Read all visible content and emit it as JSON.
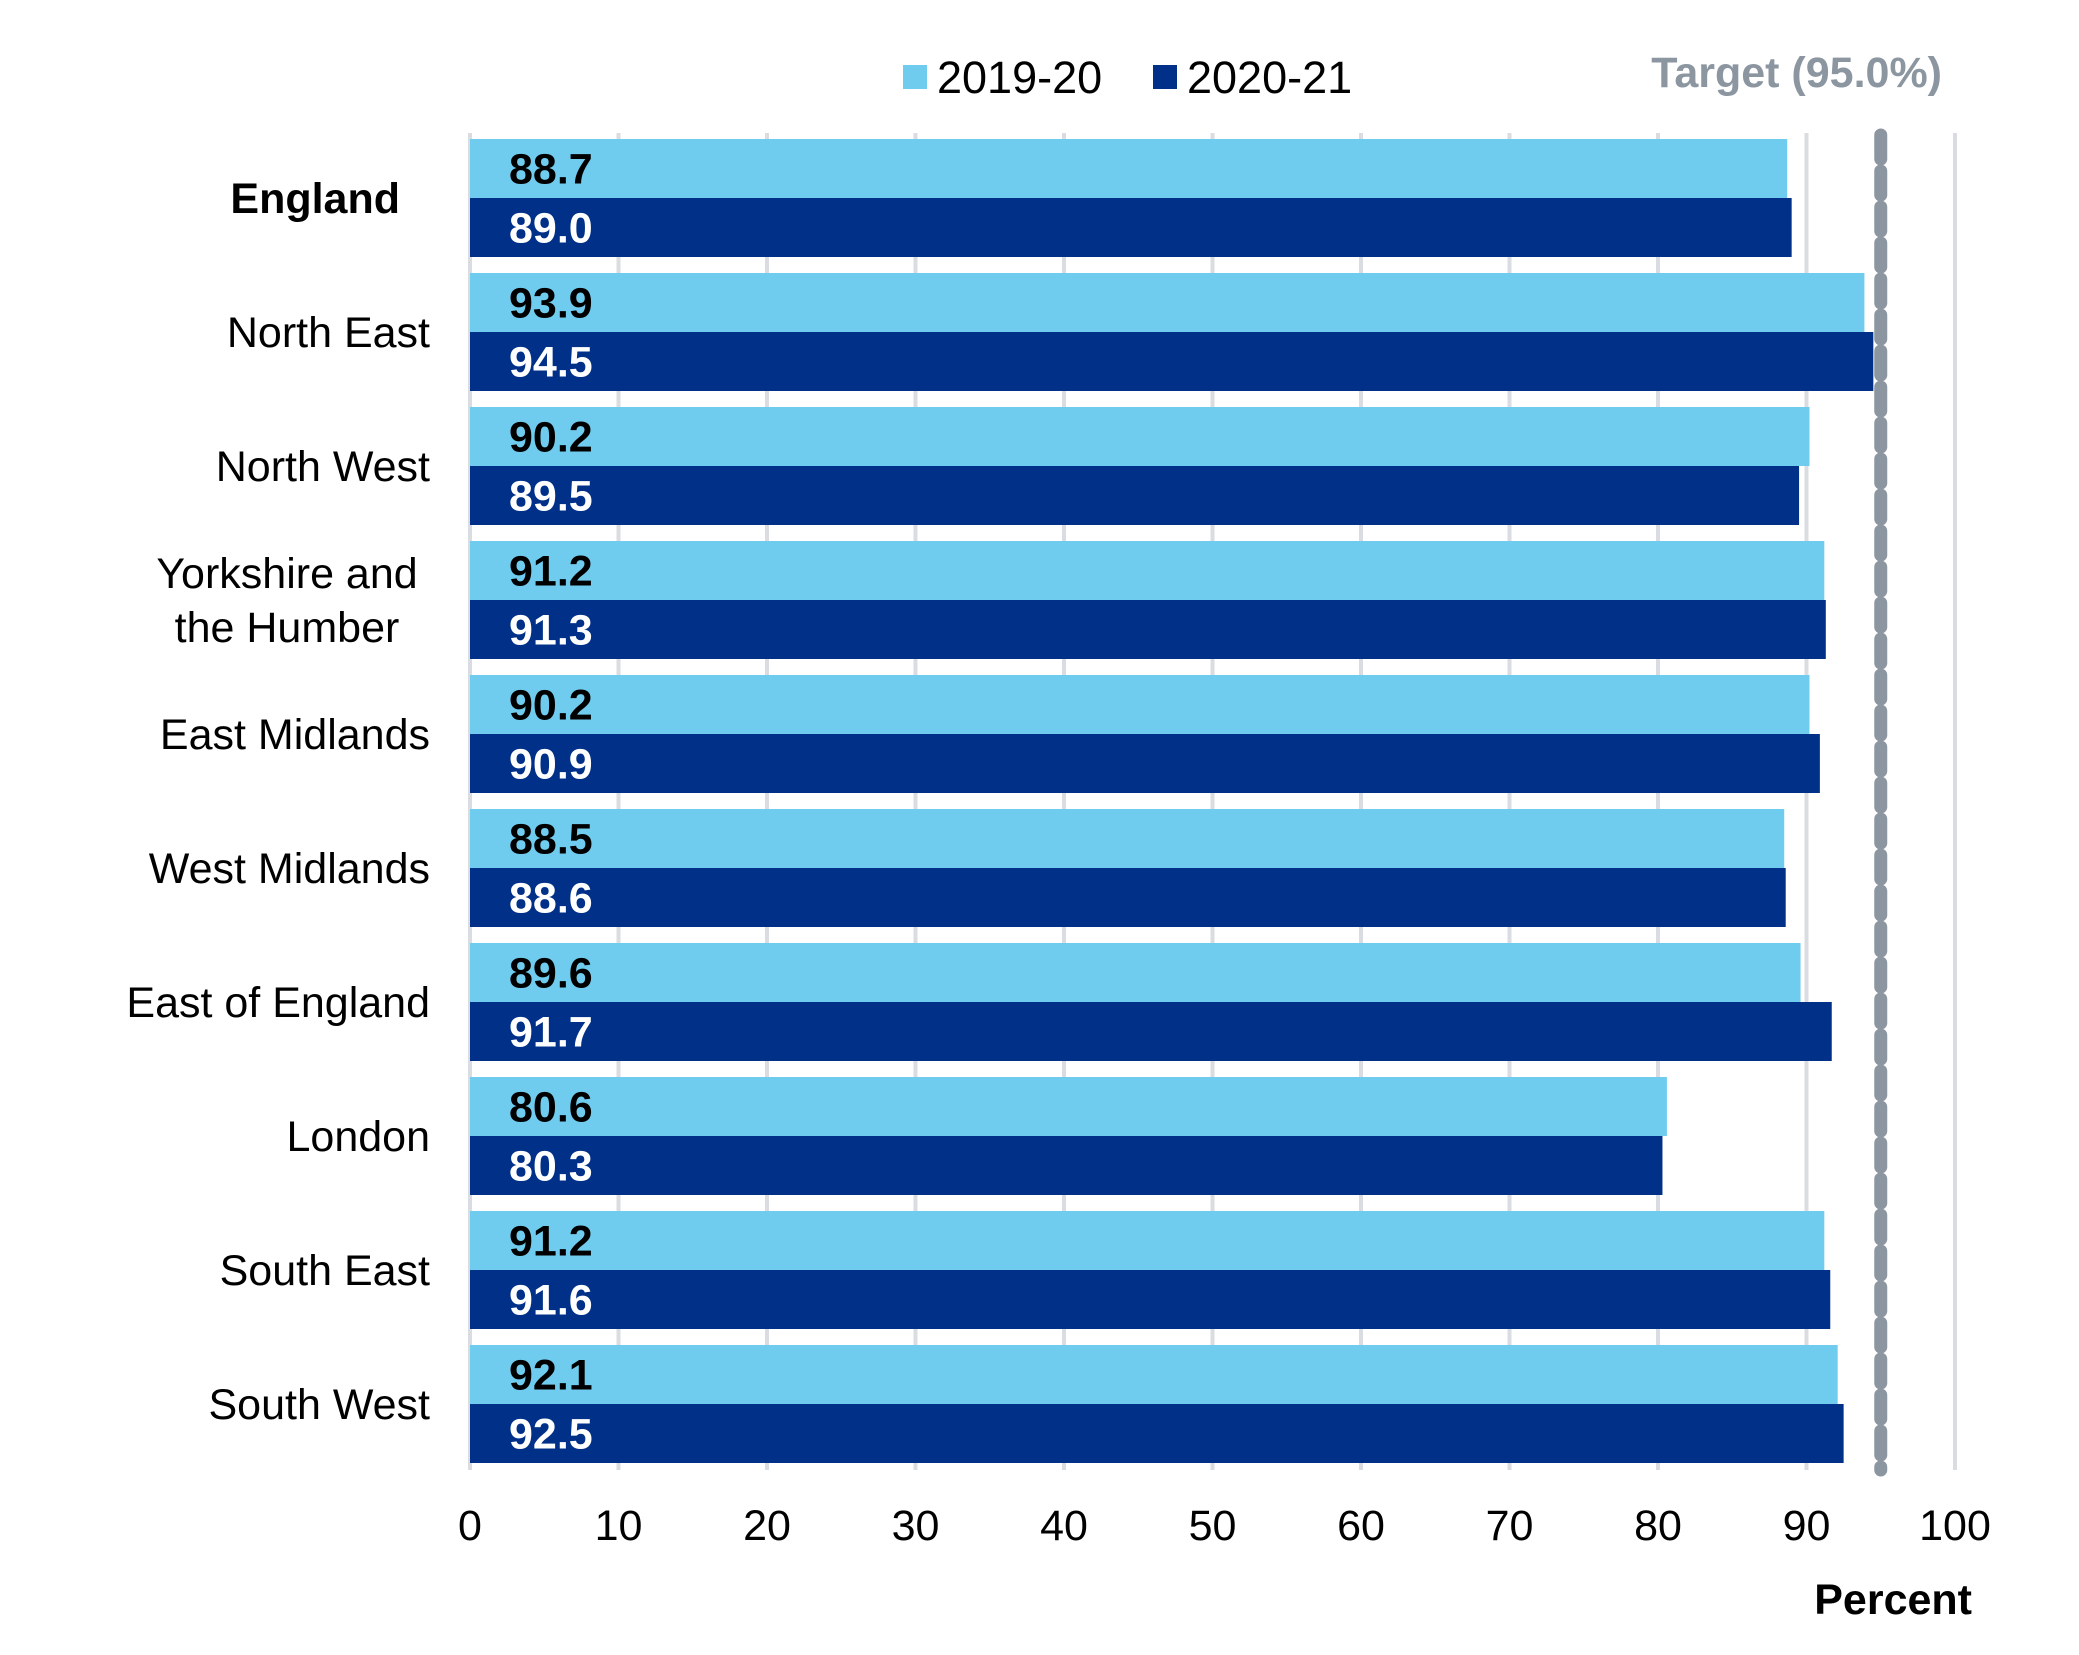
{
  "chart_data": {
    "type": "bar",
    "orientation": "horizontal",
    "categories": [
      "England",
      "North East",
      "North West",
      "Yorkshire and the Humber",
      "East Midlands",
      "West Midlands",
      "East of England",
      "London",
      "South East",
      "South West"
    ],
    "category_lines": [
      [
        "England"
      ],
      [
        "North East"
      ],
      [
        "North West"
      ],
      [
        "Yorkshire and",
        "the Humber"
      ],
      [
        "East Midlands"
      ],
      [
        "West Midlands"
      ],
      [
        "East of England"
      ],
      [
        "London"
      ],
      [
        "South East"
      ],
      [
        "South West"
      ]
    ],
    "bold_categories": [
      "England"
    ],
    "series": [
      {
        "name": "2019-20",
        "color": "#70ccee",
        "label_color": "#000000",
        "values": [
          88.7,
          93.9,
          90.2,
          91.2,
          90.2,
          88.5,
          89.6,
          80.6,
          91.2,
          92.1
        ]
      },
      {
        "name": "2020-21",
        "color": "#003087",
        "label_color": "#ffffff",
        "values": [
          89.0,
          94.5,
          89.5,
          91.3,
          90.9,
          88.6,
          91.7,
          80.3,
          91.6,
          92.5
        ]
      }
    ],
    "xlabel": "Percent",
    "xlim": [
      0,
      100
    ],
    "xticks": [
      0,
      10,
      20,
      30,
      40,
      50,
      60,
      70,
      80,
      90,
      100
    ],
    "reference_line": {
      "value": 95.0,
      "label": "Target (95.0%)",
      "color": "#8c96a0",
      "style": "dashed"
    },
    "grid": true,
    "grid_color": "#d9dde1",
    "legend_position": "top"
  }
}
